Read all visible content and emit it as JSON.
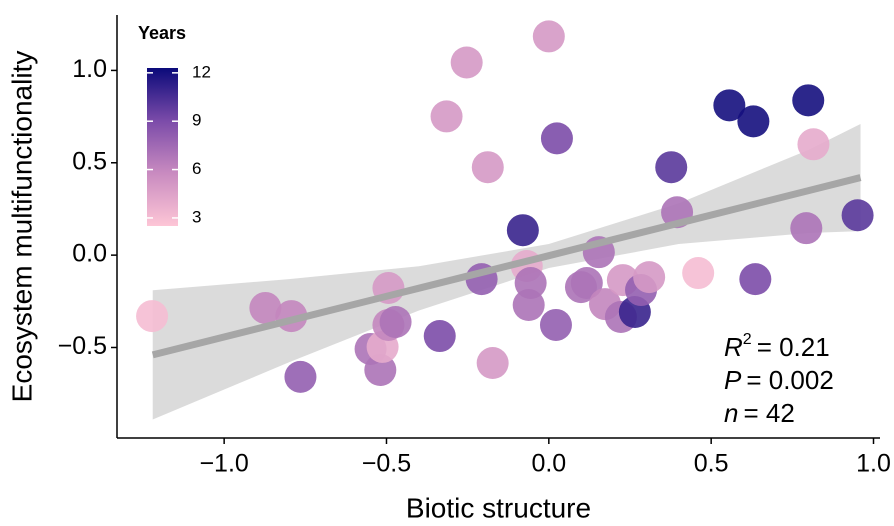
{
  "chart_data": {
    "type": "scatter",
    "xlabel": "Biotic structure",
    "ylabel": "Ecosystem multifunctionality",
    "xlim": [
      -1.33,
      1.02
    ],
    "ylim": [
      -0.99,
      1.3
    ],
    "xticks": [
      {
        "value": -1.0,
        "label": "−1.0"
      },
      {
        "value": -0.5,
        "label": "−0.5"
      },
      {
        "value": 0.0,
        "label": "0.0"
      },
      0.5,
      {
        "value": 1.0,
        "label": "1.0"
      }
    ],
    "yticks": [
      {
        "value": -0.5,
        "label": "−0.5"
      },
      {
        "value": 0.0,
        "label": "0.0"
      },
      0.5,
      {
        "value": 1.0,
        "label": "1.0"
      }
    ],
    "x": [
      -1.222,
      -0.873,
      -0.793,
      -0.765,
      -0.549,
      -0.519,
      -0.512,
      -0.494,
      -0.494,
      -0.472,
      -0.336,
      -0.315,
      -0.253,
      -0.207,
      -0.188,
      -0.173,
      -0.08,
      -0.068,
      -0.062,
      -0.056,
      0.0,
      0.022,
      0.025,
      0.099,
      0.117,
      0.154,
      0.173,
      0.222,
      0.228,
      0.265,
      0.284,
      0.309,
      0.377,
      0.395,
      0.46,
      0.556,
      0.63,
      0.636,
      0.793,
      0.799,
      0.815,
      0.951
    ],
    "y": [
      -0.33,
      -0.286,
      -0.33,
      -0.659,
      -0.508,
      -0.622,
      -0.497,
      -0.178,
      -0.378,
      -0.362,
      -0.438,
      0.751,
      1.043,
      -0.13,
      0.476,
      -0.584,
      0.135,
      -0.059,
      -0.27,
      -0.151,
      1.184,
      -0.378,
      0.632,
      -0.173,
      -0.151,
      0.016,
      -0.265,
      -0.335,
      -0.135,
      -0.308,
      -0.189,
      -0.119,
      0.476,
      0.232,
      -0.097,
      0.811,
      0.724,
      -0.13,
      0.146,
      0.838,
      0.6,
      0.216
    ],
    "years": [
      3,
      6,
      6,
      8,
      7,
      7,
      4,
      5,
      6,
      7,
      9,
      5,
      5,
      8,
      5,
      5,
      11,
      4,
      7,
      7,
      5,
      8,
      9,
      7,
      7,
      7,
      6,
      7,
      5,
      11,
      8,
      5,
      10,
      7,
      3,
      12,
      12,
      9,
      7,
      12,
      4,
      10
    ],
    "color_scale": {
      "title": "Years",
      "lim": [
        2.5,
        12.3
      ],
      "ticks": [
        3,
        6,
        9,
        12
      ],
      "colors": [
        "#fdc6d6",
        "#c98bc0",
        "#7b4ba9",
        "#0b0a7a"
      ]
    },
    "fit": {
      "color": "#a6a6a6",
      "band_color": "#d9d9d9",
      "x": [
        -1.22,
        -0.8,
        -0.4,
        0.0,
        0.4,
        0.8,
        0.96
      ],
      "y": [
        -0.54,
        -0.355,
        -0.179,
        -0.003,
        0.173,
        0.349,
        0.42
      ],
      "lower": [
        -0.89,
        -0.58,
        -0.3,
        -0.07,
        0.06,
        0.12,
        0.13
      ],
      "upper": [
        -0.19,
        -0.13,
        -0.06,
        0.06,
        0.28,
        0.57,
        0.71
      ]
    },
    "annotations": [
      {
        "symbol": "R",
        "sup": "2",
        "text": "= 0.21"
      },
      {
        "symbol": "P",
        "text": "= 0.002"
      },
      {
        "symbol": "n",
        "text": "= 42"
      }
    ]
  }
}
